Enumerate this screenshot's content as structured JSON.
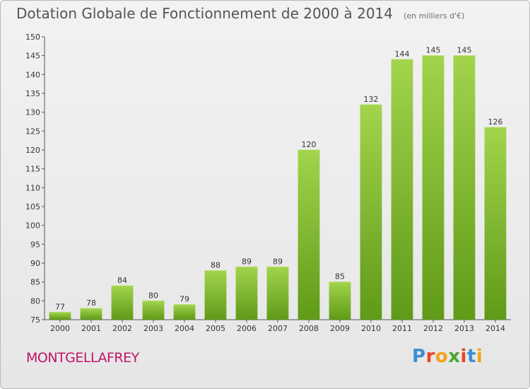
{
  "chart_data": {
    "type": "bar",
    "title": "Dotation Globale de Fonctionnement de 2000 à 2014",
    "subtitle": "(en milliers d'€)",
    "categories": [
      "2000",
      "2001",
      "2002",
      "2003",
      "2004",
      "2005",
      "2006",
      "2007",
      "2008",
      "2009",
      "2010",
      "2011",
      "2012",
      "2013",
      "2014"
    ],
    "values": [
      77,
      78,
      84,
      80,
      79,
      88,
      89,
      89,
      120,
      85,
      132,
      144,
      145,
      145,
      126
    ],
    "xlabel": "",
    "ylabel": "",
    "ylim": [
      75,
      150
    ],
    "yticks": [
      75,
      80,
      85,
      90,
      95,
      100,
      105,
      110,
      115,
      120,
      125,
      130,
      135,
      140,
      145,
      150
    ],
    "grid": false,
    "bar_color": "#7cb82a"
  },
  "footer": {
    "commune": "MONTGELLAFREY",
    "logo": {
      "letters": [
        "P",
        "r",
        "o",
        "x",
        "i",
        "t",
        "i"
      ],
      "colors": [
        "#3a8fd6",
        "#e8462a",
        "#f3a21c",
        "#4aa531",
        "#e8462a",
        "#3a8fd6",
        "#f3a21c"
      ]
    }
  }
}
